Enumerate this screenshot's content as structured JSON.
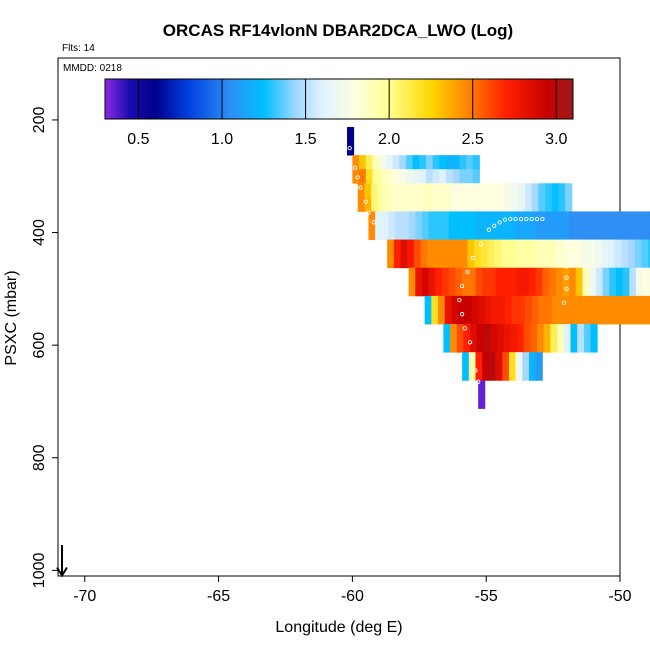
{
  "chart_data": {
    "type": "heatmap",
    "title": "ORCAS RF14vlonN DBAR2DCA_LWO (Log)",
    "flights_label": "Flts: 14",
    "date_label": "MMDD: 0218",
    "xlabel": "Longitude (deg E)",
    "ylabel": "PSXC (mbar)",
    "xlim": [
      -71,
      -50
    ],
    "ylim": [
      1010,
      90
    ],
    "x_ticks": [
      -70,
      -65,
      -60,
      -55,
      -50
    ],
    "x_tick_labels": [
      "-70",
      "-65",
      "-60",
      "-55",
      "-50"
    ],
    "y_ticks": [
      200,
      400,
      600,
      800,
      1000
    ],
    "y_tick_labels": [
      "200",
      "400",
      "600",
      "800",
      "1000"
    ],
    "colorbar": {
      "range": [
        0.3,
        3.1
      ],
      "ticks": [
        0.5,
        1.0,
        1.5,
        2.0,
        2.5,
        3.0
      ],
      "tick_labels": [
        "0.5",
        "1.0",
        "1.5",
        "2.0",
        "2.5",
        "3.0"
      ],
      "stops": [
        {
          "v": 0.3,
          "color": "#8a2be2"
        },
        {
          "v": 0.45,
          "color": "#1a0ab0"
        },
        {
          "v": 0.6,
          "color": "#00008b"
        },
        {
          "v": 0.8,
          "color": "#0040e0"
        },
        {
          "v": 1.05,
          "color": "#2f8ff5"
        },
        {
          "v": 1.25,
          "color": "#00bfff"
        },
        {
          "v": 1.45,
          "color": "#a6d8ff"
        },
        {
          "v": 1.6,
          "color": "#dff2ff"
        },
        {
          "v": 1.8,
          "color": "#ffffe0"
        },
        {
          "v": 2.0,
          "color": "#ffff90"
        },
        {
          "v": 2.25,
          "color": "#ffd700"
        },
        {
          "v": 2.45,
          "color": "#ff8c00"
        },
        {
          "v": 2.7,
          "color": "#ff2000"
        },
        {
          "v": 2.95,
          "color": "#c80000"
        },
        {
          "v": 3.1,
          "color": "#9b1c1c"
        }
      ]
    },
    "cell_height_mbar": 25,
    "rows": [
      {
        "p": 225,
        "x0": -60.2,
        "dx": 0.25,
        "values": [
          0.6
        ]
      },
      {
        "p": 250,
        "x0": -60.2,
        "dx": 0.25,
        "values": [
          0.6
        ]
      },
      {
        "p": 275,
        "x0": -60.0,
        "dx": 0.25,
        "values": [
          2.45,
          2.3,
          2.1,
          1.9,
          1.75,
          1.65,
          1.55,
          1.45,
          1.35,
          1.25,
          1.3,
          1.4,
          1.3,
          1.25,
          1.2,
          1.2,
          1.3,
          1.35,
          1.3
        ]
      },
      {
        "p": 300,
        "x0": -60.0,
        "dx": 0.25,
        "values": [
          2.45,
          2.5,
          2.2,
          2.0,
          1.9,
          1.85,
          1.8,
          1.75,
          1.7,
          1.65,
          1.6,
          1.5,
          1.55,
          1.6,
          1.5,
          1.45,
          1.4,
          1.4,
          1.35
        ]
      },
      {
        "p": 325,
        "x0": -59.8,
        "dx": 0.25,
        "values": [
          2.45,
          2.3,
          2.05,
          1.95,
          1.9,
          1.85,
          1.85,
          1.85,
          1.85,
          1.85,
          1.9,
          1.85,
          1.85,
          1.85,
          1.8,
          1.8,
          1.8,
          1.8,
          1.8,
          1.8,
          1.8,
          1.8,
          1.75,
          1.7,
          1.65,
          1.55,
          1.45,
          1.35,
          1.3,
          1.25,
          1.3,
          1.4
        ]
      },
      {
        "p": 350,
        "x0": -59.8,
        "dx": 0.25,
        "values": [
          2.45,
          2.35,
          2.05,
          1.95,
          1.9,
          1.85,
          1.85,
          1.85,
          1.85,
          1.85,
          1.9,
          1.85,
          1.85,
          1.85,
          1.8,
          1.8,
          1.8,
          1.8,
          1.8,
          1.8,
          1.8,
          1.8,
          1.75,
          1.7,
          1.65,
          1.55,
          1.45,
          1.35,
          1.3,
          1.25,
          1.3,
          1.4
        ]
      },
      {
        "p": 375,
        "x0": -59.4,
        "dx": 0.25,
        "values": [
          2.45,
          1.6,
          1.6,
          1.55,
          1.5,
          1.5,
          1.45,
          1.4,
          1.35,
          1.3,
          1.3,
          1.3,
          1.25,
          1.25,
          1.25,
          1.25,
          1.2,
          1.2,
          1.2,
          1.2,
          1.2,
          1.2,
          1.15,
          1.15,
          1.15,
          1.1,
          1.1,
          1.1,
          1.1,
          1.1,
          1.05,
          1.05,
          1.05,
          1.05,
          1.05,
          1.05,
          1.05,
          1.05,
          1.05,
          1.05,
          1.05,
          1.05,
          1.05,
          1.05,
          1.0,
          1.0,
          1.0,
          1.0,
          1.05,
          1.05,
          1.1,
          1.1,
          1.15,
          1.2,
          1.2,
          1.15,
          1.1,
          1.05,
          1.0,
          1.0,
          1.0,
          1.0,
          1.0,
          1.0,
          1.0,
          1.0,
          1.05,
          1.05,
          1.1,
          1.15,
          1.2,
          1.3,
          1.25,
          1.2,
          1.1,
          1.05,
          1.0,
          1.0,
          1.0,
          1.0,
          1.0,
          1.05,
          1.05,
          1.05,
          1.05,
          1.0,
          1.0
        ]
      },
      {
        "p": 400,
        "x0": -59.4,
        "dx": 0.25,
        "values": [
          2.45,
          1.6,
          1.6,
          1.55,
          1.5,
          1.5,
          1.45,
          1.4,
          1.35,
          1.3,
          1.3,
          1.3,
          1.25,
          1.25,
          1.25,
          1.25,
          1.2,
          1.2,
          1.2,
          1.2,
          1.2,
          1.2,
          1.15,
          1.15,
          1.15,
          1.1,
          1.1,
          1.1,
          1.1,
          1.1,
          1.05,
          1.05,
          1.05,
          1.05,
          1.05,
          1.05,
          1.05,
          1.05,
          1.05,
          1.05,
          1.05,
          1.05,
          1.05,
          1.05,
          1.0,
          1.0,
          1.0,
          1.0,
          1.05,
          1.05,
          1.1,
          1.1,
          1.15,
          1.2,
          1.2,
          1.15,
          1.1,
          1.05,
          1.0,
          1.0,
          1.0,
          1.0,
          1.0,
          1.0,
          1.0,
          1.0,
          1.05,
          1.05,
          1.1,
          1.15,
          1.2,
          1.3,
          1.25,
          1.2,
          1.1,
          1.05,
          1.0,
          1.0,
          1.0,
          1.0,
          1.0,
          1.05,
          1.05,
          1.05,
          1.05,
          1.0,
          1.0
        ]
      },
      {
        "p": 425,
        "x0": -58.7,
        "dx": 0.25,
        "values": [
          2.45,
          2.7,
          2.85,
          2.75,
          2.6,
          2.5,
          2.45,
          2.45,
          2.45,
          2.45,
          2.45,
          2.45,
          2.3,
          2.2,
          2.15,
          2.1,
          2.05,
          2.0,
          2.0,
          1.95,
          1.95,
          1.95,
          1.9,
          1.9,
          1.9,
          1.85,
          1.85,
          1.8,
          1.8,
          1.75,
          1.75,
          1.7,
          1.65,
          1.6,
          1.55,
          1.5,
          1.45,
          1.4,
          1.35,
          1.3,
          1.25,
          1.25,
          1.25,
          1.25,
          1.25,
          1.25,
          1.25,
          1.2,
          1.25,
          1.2,
          1.15,
          1.1,
          1.2,
          1.25,
          1.15
        ]
      },
      {
        "p": 450,
        "x0": -58.7,
        "dx": 0.25,
        "values": [
          2.45,
          2.7,
          2.85,
          2.75,
          2.6,
          2.5,
          2.45,
          2.45,
          2.45,
          2.45,
          2.45,
          2.45,
          2.3,
          2.2,
          2.15,
          2.1,
          2.05,
          2.0,
          2.0,
          1.95,
          1.95,
          1.95,
          1.9,
          1.9,
          1.9,
          1.85,
          1.85,
          1.8,
          1.8,
          1.75,
          1.75,
          1.7,
          1.65,
          1.6,
          1.55,
          1.5,
          1.45,
          1.4,
          1.35,
          1.3,
          1.25,
          1.25,
          1.25,
          1.25,
          1.25,
          1.25,
          1.25,
          1.2,
          1.25,
          1.2,
          1.15,
          1.1,
          1.2,
          1.25,
          1.15
        ]
      },
      {
        "p": 475,
        "x0": -57.9,
        "dx": 0.25,
        "values": [
          2.45,
          2.8,
          2.9,
          2.8,
          2.7,
          2.65,
          2.6,
          2.55,
          2.5,
          2.5,
          2.6,
          2.65,
          2.65,
          2.7,
          2.7,
          2.7,
          2.75,
          2.75,
          2.7,
          2.65,
          2.55,
          2.5,
          2.45,
          2.4,
          2.45,
          2.3,
          1.9,
          1.7,
          1.55,
          1.4,
          1.3,
          1.25,
          1.3,
          1.5,
          1.75,
          1.8,
          1.75,
          1.6,
          1.25
        ]
      },
      {
        "p": 500,
        "x0": -57.9,
        "dx": 0.25,
        "values": [
          2.45,
          2.8,
          2.9,
          2.8,
          2.7,
          2.65,
          2.6,
          2.55,
          2.5,
          2.5,
          2.6,
          2.65,
          2.65,
          2.7,
          2.7,
          2.7,
          2.75,
          2.75,
          2.7,
          2.65,
          2.55,
          2.5,
          2.45,
          2.4,
          2.45,
          2.3,
          1.9,
          1.7,
          1.55,
          1.4,
          1.3,
          1.25,
          1.3,
          1.5,
          1.75,
          1.8,
          1.75,
          1.6,
          1.25
        ]
      },
      {
        "p": 525,
        "x0": -57.3,
        "dx": 0.25,
        "values": [
          1.25,
          2.2,
          2.45,
          2.8,
          2.9,
          2.95,
          2.95,
          2.9,
          2.85,
          2.8,
          2.75,
          2.75,
          2.7,
          2.65,
          2.65,
          2.6,
          2.55,
          2.5,
          2.5,
          2.45,
          2.45,
          2.45,
          2.45,
          2.45,
          2.45,
          2.45,
          2.45,
          2.45,
          2.45,
          2.45,
          2.45,
          2.45,
          2.45,
          2.45,
          2.45,
          2.45
        ]
      },
      {
        "p": 550,
        "x0": -57.3,
        "dx": 0.25,
        "values": [
          1.25,
          2.2,
          2.45,
          2.8,
          2.9,
          2.95,
          2.95,
          2.9,
          2.85,
          2.8,
          2.75,
          2.75,
          2.7,
          2.65,
          2.65,
          2.6,
          2.55,
          2.5,
          2.5,
          2.45,
          2.45,
          2.45,
          2.45,
          2.45,
          2.45,
          2.45,
          2.45,
          2.45,
          2.45,
          2.45,
          2.45,
          2.45,
          2.45,
          2.45,
          2.45,
          2.45
        ]
      },
      {
        "p": 575,
        "x0": -56.6,
        "dx": 0.25,
        "values": [
          1.25,
          2.45,
          2.6,
          2.7,
          2.85,
          2.95,
          3.0,
          2.9,
          2.85,
          2.8,
          2.75,
          2.7,
          2.6,
          2.55,
          2.45,
          2.35,
          2.1,
          1.9,
          1.6,
          1.25,
          1.5,
          1.35,
          1.25
        ]
      },
      {
        "p": 600,
        "x0": -56.6,
        "dx": 0.25,
        "values": [
          1.25,
          2.45,
          2.6,
          2.7,
          2.85,
          2.95,
          3.0,
          2.9,
          2.85,
          2.8,
          2.75,
          2.7,
          2.6,
          2.55,
          2.45,
          2.35,
          2.1,
          1.9,
          1.6,
          1.25,
          1.5,
          1.35,
          1.25
        ]
      },
      {
        "p": 625,
        "x0": -55.9,
        "dx": 0.25,
        "values": [
          1.25,
          1.95,
          2.7,
          2.95,
          3.0,
          2.85,
          2.6,
          2.2,
          1.7,
          1.45,
          1.2,
          1.1
        ]
      },
      {
        "p": 650,
        "x0": -55.9,
        "dx": 0.25,
        "values": [
          1.25,
          1.95,
          2.7,
          2.95,
          3.0,
          2.85,
          2.6,
          2.2,
          1.7,
          1.45,
          1.2,
          1.1
        ]
      },
      {
        "p": 675,
        "x0": -55.3,
        "dx": 0.25,
        "values": [
          0.35
        ]
      },
      {
        "p": 700,
        "x0": -55.3,
        "dx": 0.25,
        "values": [
          0.35
        ]
      }
    ],
    "track_points": [
      [
        -60.1,
        250
      ],
      [
        -59.9,
        285
      ],
      [
        -59.8,
        302
      ],
      [
        -59.7,
        320
      ],
      [
        -59.5,
        345
      ],
      [
        -59.4,
        365
      ],
      [
        -59.2,
        382
      ],
      [
        -54.9,
        395
      ],
      [
        -54.7,
        388
      ],
      [
        -54.5,
        382
      ],
      [
        -54.3,
        377
      ],
      [
        -54.1,
        376
      ],
      [
        -53.9,
        376
      ],
      [
        -53.7,
        376
      ],
      [
        -53.5,
        376
      ],
      [
        -53.3,
        376
      ],
      [
        -53.1,
        376
      ],
      [
        -52.9,
        376
      ],
      [
        -55.2,
        420
      ],
      [
        -55.5,
        445
      ],
      [
        -55.7,
        470
      ],
      [
        -55.9,
        495
      ],
      [
        -56.0,
        520
      ],
      [
        -55.9,
        545
      ],
      [
        -55.8,
        570
      ],
      [
        -55.6,
        595
      ],
      [
        -55.5,
        620
      ],
      [
        -55.4,
        645
      ],
      [
        -55.3,
        665
      ],
      [
        -52.0,
        420
      ],
      [
        -52.0,
        440
      ],
      [
        -52.0,
        460
      ],
      [
        -52.0,
        480
      ],
      [
        -52.0,
        500
      ],
      [
        -52.1,
        525
      ]
    ],
    "wind_arrow": {
      "lon": -70.85,
      "p_start": 955,
      "p_end": 1010
    }
  }
}
